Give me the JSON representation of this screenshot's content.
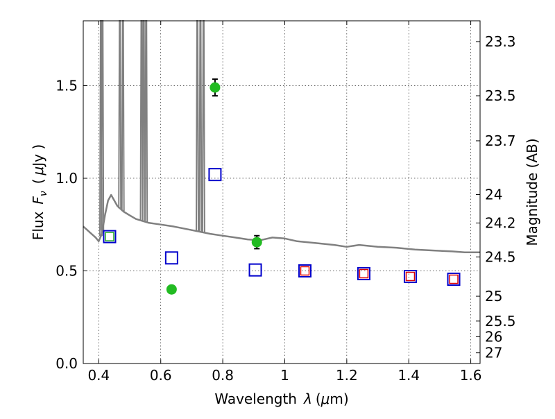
{
  "chart_data": {
    "type": "scatter",
    "xlabel": "Wavelength",
    "xlabel_symbol": "λ",
    "xlabel_unit_open": "(",
    "xlabel_unit_mu": "μ",
    "xlabel_unit_rest": "m)",
    "ylabel_left_prefix": "Flux",
    "ylabel_left_symbol": "F",
    "ylabel_left_sub": "ν",
    "ylabel_left_unit_open": "(",
    "ylabel_left_unit_mu": "μ",
    "ylabel_left_unit_rest": "Jy )",
    "ylabel_right": "Magnitude (AB)",
    "xlim": [
      0.35,
      1.63
    ],
    "ylim": [
      0.0,
      1.85
    ],
    "x_ticks": [
      0.4,
      0.6,
      0.8,
      1.0,
      1.2,
      1.4,
      1.6
    ],
    "x_tick_labels": [
      "0.4",
      "0.6",
      "0.8",
      "1",
      "1.2",
      "1.4",
      "1.6"
    ],
    "y_ticks": [
      0.0,
      0.5,
      1.0,
      1.5
    ],
    "y_tick_labels": [
      "0.0",
      "0.5",
      "1.0",
      "1.5"
    ],
    "right_ticks": [
      {
        "mag": 23.3,
        "label": "23.3"
      },
      {
        "mag": 23.5,
        "label": "23.5"
      },
      {
        "mag": 23.7,
        "label": "23.7"
      },
      {
        "mag": 24.0,
        "label": "24"
      },
      {
        "mag": 24.2,
        "label": "24.2"
      },
      {
        "mag": 24.5,
        "label": "24.5"
      },
      {
        "mag": 25.0,
        "label": "25"
      },
      {
        "mag": 25.5,
        "label": "25.5"
      },
      {
        "mag": 26.0,
        "label": "26"
      },
      {
        "mag": 27.0,
        "label": "27"
      }
    ],
    "grid": true,
    "colors": {
      "spectrum": "#808080",
      "observed": "#22bb22",
      "model_blue": "#0000cc",
      "model_red": "#dd0000",
      "model_green": "#22aa22"
    },
    "observed": [
      {
        "x": 0.635,
        "y": 0.4,
        "err": 0.02
      },
      {
        "x": 0.775,
        "y": 1.49,
        "err": 0.045
      },
      {
        "x": 0.91,
        "y": 0.655,
        "err": 0.035
      }
    ],
    "model_photometry": [
      {
        "x": 0.435,
        "y": 0.685
      },
      {
        "x": 0.635,
        "y": 0.57
      },
      {
        "x": 0.775,
        "y": 1.02
      },
      {
        "x": 0.905,
        "y": 0.505
      },
      {
        "x": 1.065,
        "y": 0.5
      },
      {
        "x": 1.255,
        "y": 0.485
      },
      {
        "x": 1.405,
        "y": 0.47
      },
      {
        "x": 1.545,
        "y": 0.455
      }
    ],
    "green_inner": [
      {
        "x": 0.435,
        "y": 0.685
      }
    ],
    "red_inner": [
      {
        "x": 1.065,
        "y": 0.5
      },
      {
        "x": 1.255,
        "y": 0.485
      },
      {
        "x": 1.405,
        "y": 0.47
      },
      {
        "x": 1.545,
        "y": 0.455
      }
    ],
    "spectrum_continuum": [
      [
        0.35,
        0.74
      ],
      [
        0.37,
        0.71
      ],
      [
        0.39,
        0.68
      ],
      [
        0.4,
        0.66
      ],
      [
        0.41,
        0.7
      ],
      [
        0.42,
        0.8
      ],
      [
        0.43,
        0.88
      ],
      [
        0.44,
        0.91
      ],
      [
        0.46,
        0.85
      ],
      [
        0.48,
        0.82
      ],
      [
        0.5,
        0.8
      ],
      [
        0.52,
        0.78
      ],
      [
        0.56,
        0.76
      ],
      [
        0.6,
        0.75
      ],
      [
        0.64,
        0.74
      ],
      [
        0.7,
        0.72
      ],
      [
        0.76,
        0.7
      ],
      [
        0.8,
        0.69
      ],
      [
        0.84,
        0.68
      ],
      [
        0.88,
        0.67
      ],
      [
        0.92,
        0.665
      ],
      [
        0.96,
        0.68
      ],
      [
        1.0,
        0.675
      ],
      [
        1.04,
        0.66
      ],
      [
        1.1,
        0.65
      ],
      [
        1.16,
        0.64
      ],
      [
        1.2,
        0.63
      ],
      [
        1.24,
        0.64
      ],
      [
        1.3,
        0.63
      ],
      [
        1.36,
        0.625
      ],
      [
        1.42,
        0.615
      ],
      [
        1.48,
        0.61
      ],
      [
        1.54,
        0.605
      ],
      [
        1.58,
        0.6
      ],
      [
        1.63,
        0.6
      ]
    ],
    "emission_lines": [
      {
        "x": 0.407,
        "peak": 1.85
      },
      {
        "x": 0.412,
        "peak": 1.85
      },
      {
        "x": 0.468,
        "peak": 1.85
      },
      {
        "x": 0.478,
        "peak": 1.85
      },
      {
        "x": 0.538,
        "peak": 1.85
      },
      {
        "x": 0.545,
        "peak": 1.85
      },
      {
        "x": 0.553,
        "peak": 1.85
      },
      {
        "x": 0.718,
        "peak": 1.85
      },
      {
        "x": 0.728,
        "peak": 1.85
      },
      {
        "x": 0.738,
        "peak": 1.85
      }
    ]
  }
}
